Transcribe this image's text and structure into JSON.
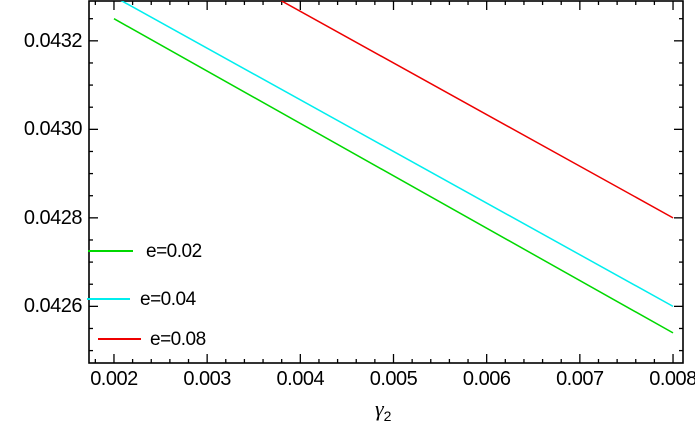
{
  "figure": {
    "background": "#ffffff",
    "axis_color": "#000000",
    "text_color": "#000000"
  },
  "chart_data": {
    "type": "line",
    "title": "",
    "ylabel": "",
    "xlabel": {
      "base": "γ",
      "subscript": "2"
    },
    "xlim": [
      0.001732,
      0.008107
    ],
    "ylim": [
      0.042472,
      0.04329
    ],
    "x_ticks": [
      0.002,
      0.003,
      0.004,
      0.005,
      0.006,
      0.007,
      0.008
    ],
    "x_tick_labels": [
      "0.002",
      "0.003",
      "0.004",
      "0.005",
      "0.006",
      "0.007",
      "0.008"
    ],
    "y_ticks": [
      0.0426,
      0.0428,
      0.043,
      0.0432
    ],
    "y_tick_labels": [
      "0.0426",
      "0.0428",
      "0.0430",
      "0.0432"
    ],
    "x_minor_step": 0.0002,
    "y_minor_step": 5e-05,
    "grid": false,
    "frame": true,
    "legend_position": "lower-left",
    "series": [
      {
        "name": "e=0.02",
        "color": "#00d800",
        "x": [
          0.002,
          0.008
        ],
        "y": [
          0.04325,
          0.04254
        ]
      },
      {
        "name": "e=0.04",
        "color": "#00eeee",
        "x": [
          0.002,
          0.008
        ],
        "y": [
          0.0433,
          0.0426
        ]
      },
      {
        "name": "e=0.08",
        "color": "#ee0000",
        "x": [
          0.002,
          0.008
        ],
        "y": [
          0.0435,
          0.0428
        ]
      }
    ]
  }
}
